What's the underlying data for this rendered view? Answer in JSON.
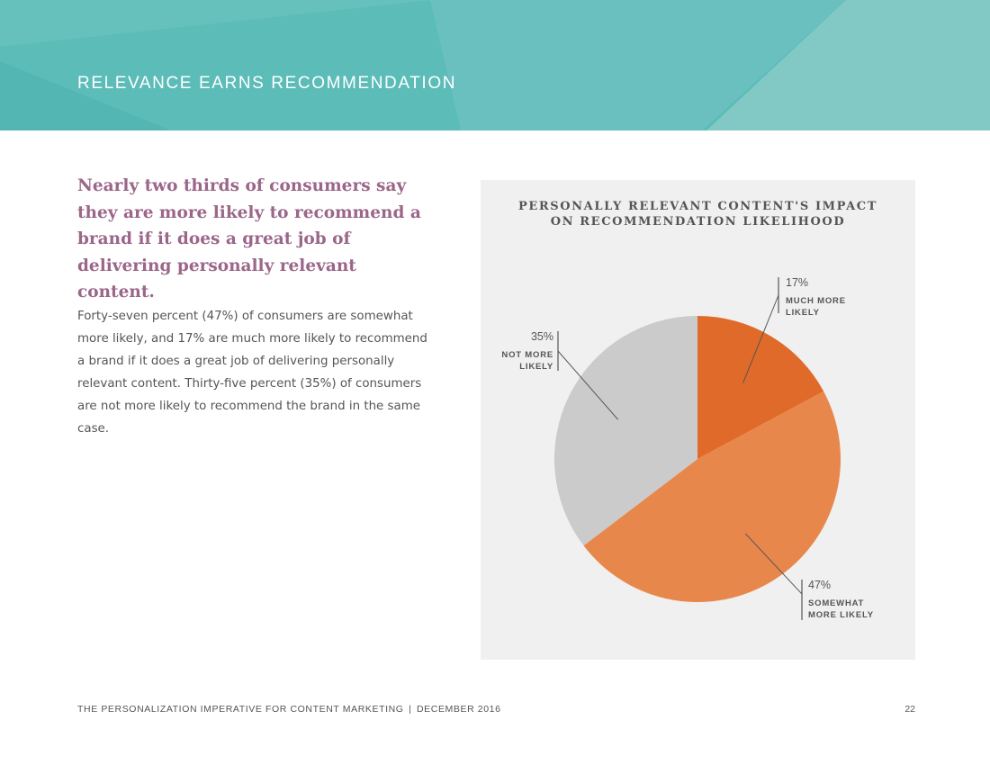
{
  "header": {
    "title": "RELEVANCE EARNS RECOMMENDATION"
  },
  "main": {
    "headline": "Nearly two thirds of consumers say they are more likely to recommend a brand if it does a great job of delivering personally relevant content.",
    "body": "Forty-seven percent (47%) of consumers are somewhat more likely, and 17% are much more likely to recommend a brand if it does a great job of delivering personally relevant content. Thirty-five percent (35%) of consumers are not more likely to recommend the brand in the same case."
  },
  "chart_data": {
    "type": "pie",
    "title_lines": [
      "PERSONALLY RELEVANT CONTENT'S IMPACT",
      "ON RECOMMENDATION LIKELIHOOD"
    ],
    "slices": [
      {
        "label_lines": [
          "MUCH MORE",
          "LIKELY"
        ],
        "value": 17,
        "value_label": "17%",
        "color": "#e06a29",
        "label_position": "top-right"
      },
      {
        "label_lines": [
          "SOMEWHAT",
          "MORE LIKELY"
        ],
        "value": 47,
        "value_label": "47%",
        "color": "#e8874b",
        "label_position": "bottom-right"
      },
      {
        "label_lines": [
          "NOT MORE",
          "LIKELY"
        ],
        "value": 35,
        "value_label": "35%",
        "color": "#cbcbcb",
        "label_position": "left"
      }
    ]
  },
  "footer": {
    "publication": "THE PERSONALIZATION IMPERATIVE FOR CONTENT MARKETING",
    "separator": "|",
    "date": "DECEMBER 2016",
    "page": "22"
  },
  "colors": {
    "banner": "#5bbcb8",
    "headline": "#9b6689",
    "panel": "#eff0ef"
  }
}
